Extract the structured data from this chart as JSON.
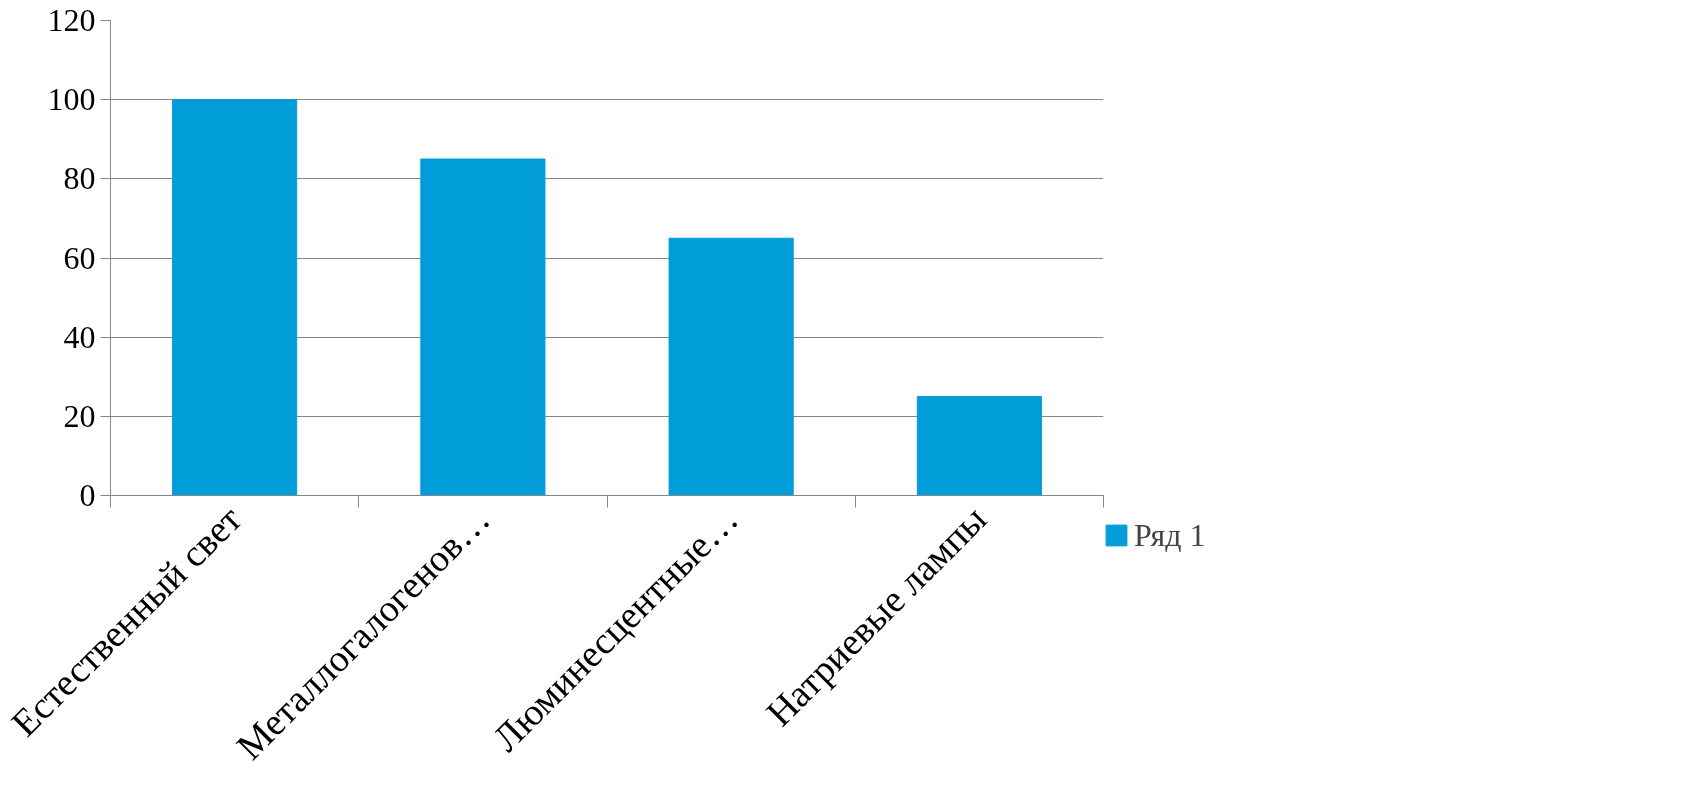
{
  "chart_data": {
    "type": "bar",
    "categories": [
      "Естественный свет",
      "Металлогалогенов…",
      "Люминесцентные…",
      "Натриевые лампы"
    ],
    "series": [
      {
        "name": "Ряд 1",
        "color": "#009dd9",
        "values": [
          100,
          85,
          65,
          25
        ]
      }
    ],
    "ylim": [
      0,
      120
    ],
    "yticks": [
      0,
      20,
      40,
      60,
      80,
      100,
      120
    ],
    "grid": "y",
    "legend": "right"
  }
}
